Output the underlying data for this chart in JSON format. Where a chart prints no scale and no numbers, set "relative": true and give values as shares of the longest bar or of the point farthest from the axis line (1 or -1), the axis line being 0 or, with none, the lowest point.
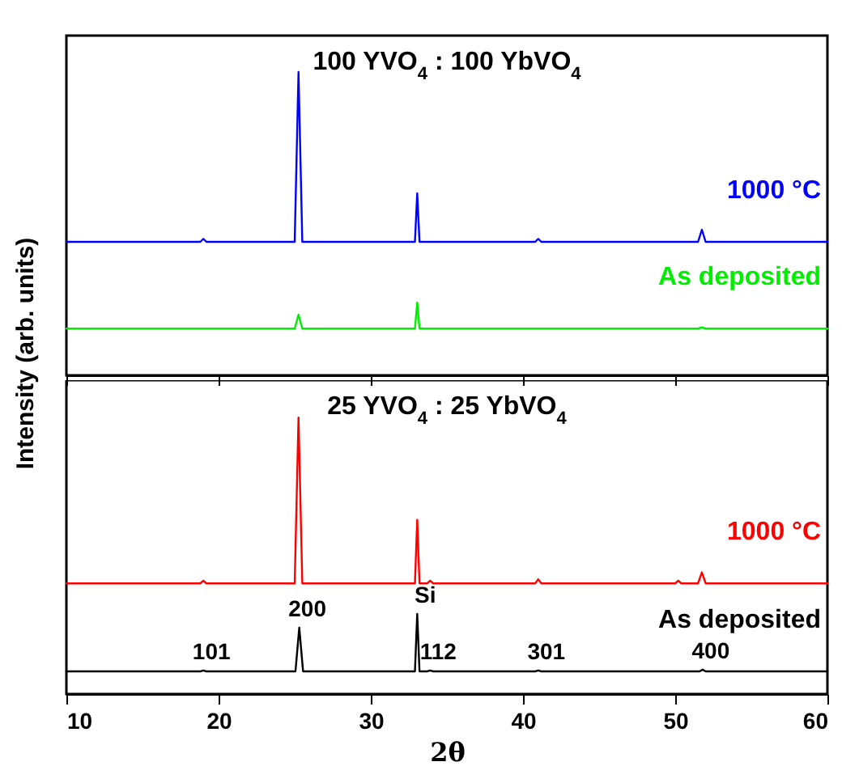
{
  "chart_data": [
    {
      "type": "line",
      "title": "100 YVO$_{4}$ : 100 YbVO$_{4}$",
      "ylabel": "Intensity (arb. units)",
      "relative": true,
      "xlim": [
        10,
        60
      ],
      "xticks": [
        10,
        20,
        30,
        40,
        50,
        60
      ],
      "tick_labels": false,
      "legend": false,
      "series": [
        {
          "name": "1000 °C",
          "color": "#0000ff",
          "x": [
            10,
            18.8,
            19,
            19.2,
            25,
            25.25,
            25.5,
            32.9,
            33.05,
            33.2,
            40.8,
            41,
            41.2,
            51.5,
            51.75,
            52,
            60
          ],
          "values": [
            0.44,
            0.44,
            0.45,
            0.44,
            0.44,
            1,
            0.44,
            0.44,
            0.6,
            0.44,
            0.44,
            0.45,
            0.44,
            0.44,
            0.48,
            0.44,
            0.44
          ]
        },
        {
          "name": "As deposited",
          "color": "#00ee00",
          "x": [
            10,
            25,
            25.25,
            25.5,
            32.9,
            33.05,
            33.2,
            51.5,
            51.75,
            52,
            60
          ],
          "values": [
            0.154,
            0.154,
            0.2,
            0.154,
            0.154,
            0.24,
            0.154,
            0.154,
            0.158,
            0.154,
            0.154
          ]
        }
      ]
    },
    {
      "type": "line",
      "title": "25 YVO$_{4}$ : 25 YbVO$_{4}$",
      "xlabel": "2θ",
      "relative": true,
      "xlim": [
        10,
        60
      ],
      "xticks": [
        10,
        20,
        30,
        40,
        50,
        60
      ],
      "tick_labels": "x",
      "legend": false,
      "series": [
        {
          "name": "1000 °C",
          "color": "#ff0000",
          "x": [
            10,
            18.8,
            19,
            19.2,
            25,
            25.25,
            25.5,
            32.9,
            33.05,
            33.2,
            33.7,
            33.9,
            34.1,
            40.8,
            41,
            41.2,
            50,
            50.2,
            50.4,
            51.5,
            51.75,
            52,
            60
          ],
          "values": [
            0.4,
            0.4,
            0.41,
            0.4,
            0.4,
            1,
            0.4,
            0.4,
            0.63,
            0.4,
            0.4,
            0.41,
            0.4,
            0.4,
            0.415,
            0.4,
            0.4,
            0.41,
            0.4,
            0.4,
            0.44,
            0.4,
            0.4
          ]
        },
        {
          "name": "As deposited",
          "color": "#000000",
          "x": [
            10,
            18.8,
            19,
            19.2,
            25.05,
            25.3,
            25.55,
            32.9,
            33.05,
            33.2,
            33.7,
            33.9,
            34.1,
            40.8,
            41,
            41.2,
            51.6,
            51.8,
            52,
            60
          ],
          "values": [
            0.082,
            0.082,
            0.085,
            0.082,
            0.082,
            0.24,
            0.082,
            0.082,
            0.29,
            0.082,
            0.082,
            0.085,
            0.082,
            0.082,
            0.085,
            0.082,
            0.082,
            0.088,
            0.082,
            0.082
          ]
        }
      ],
      "annotations": [
        {
          "text": "101",
          "x": 19,
          "y": 0.085
        },
        {
          "text": "200",
          "x": 25.3,
          "y": 0.24
        },
        {
          "text": "Si",
          "x": 33.05,
          "y": 0.29
        },
        {
          "text": "112",
          "x": 33.9,
          "y": 0.085
        },
        {
          "text": "301",
          "x": 41,
          "y": 0.085
        },
        {
          "text": "400",
          "x": 51.8,
          "y": 0.088
        }
      ]
    }
  ]
}
